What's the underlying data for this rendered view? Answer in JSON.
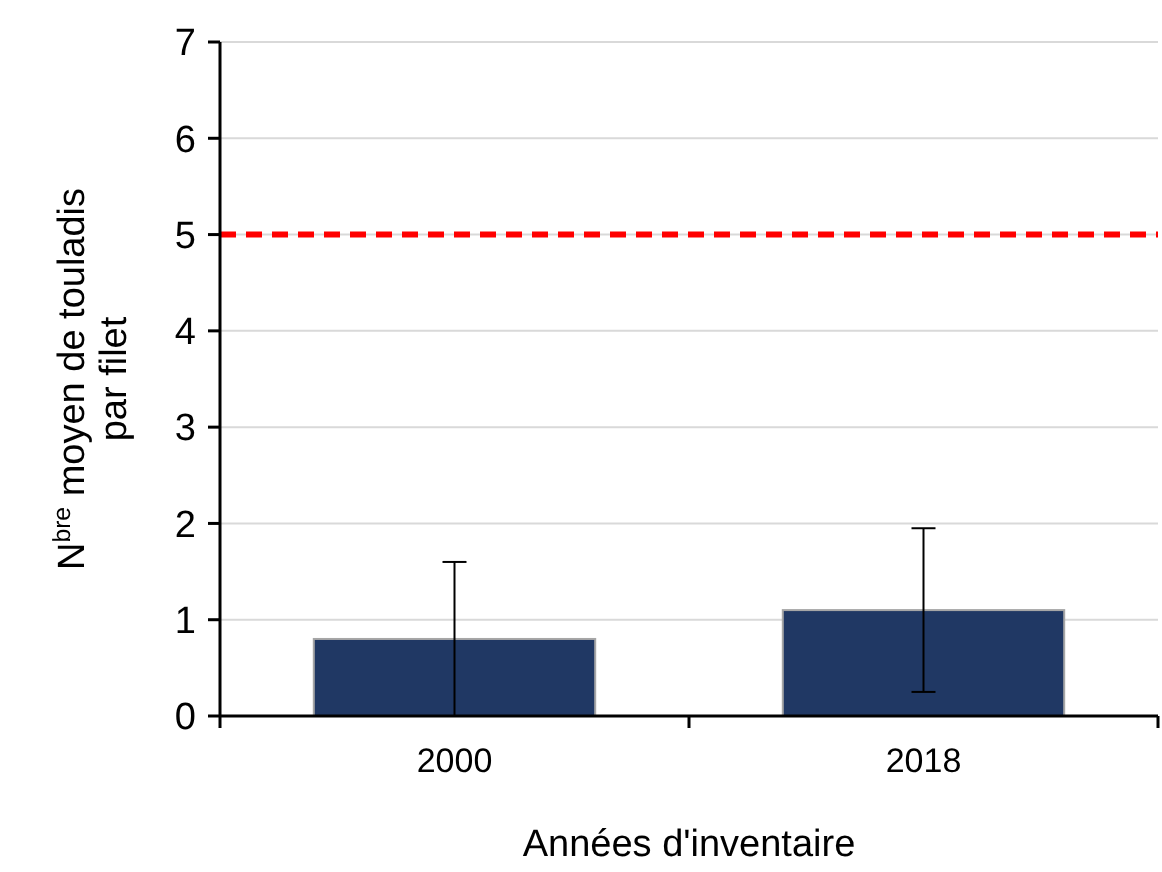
{
  "chart_data": {
    "type": "bar",
    "xlabel": "Années d'inventaire",
    "ylabel": "N$^{bre}$ moyen de touladis\npar filet",
    "categories": [
      "2000",
      "2018"
    ],
    "values": [
      0.8,
      1.1
    ],
    "color": "#203864",
    "errors": [
      [
        0,
        1.6
      ],
      [
        0.25,
        1.95
      ]
    ],
    "ylim": [
      0,
      7
    ],
    "yticks": [
      0,
      1,
      2,
      3,
      4,
      5,
      6,
      7
    ],
    "grid": "y",
    "ref_lines": [
      {
        "axis": "y",
        "value": 5,
        "color": "#ff0000",
        "line_style": "dashed"
      }
    ]
  }
}
